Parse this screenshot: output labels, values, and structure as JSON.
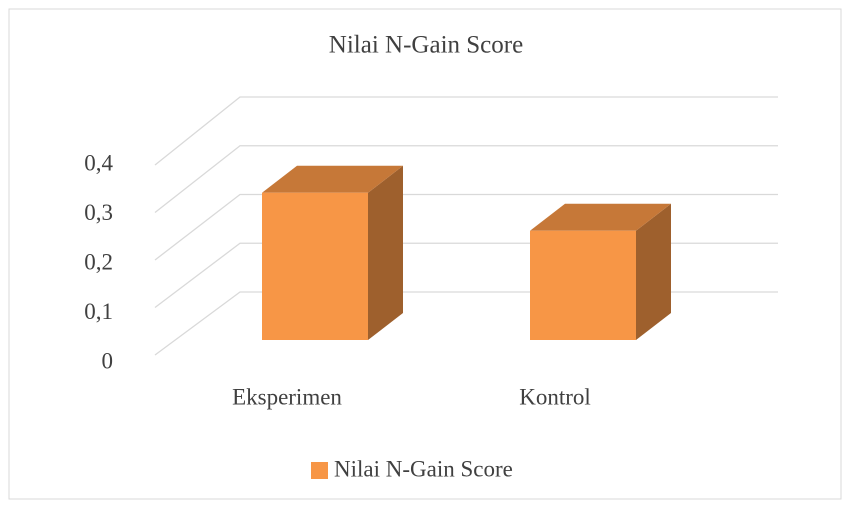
{
  "chart_data": {
    "type": "bar3d",
    "title": "Nilai N-Gain Score",
    "categories": [
      "Eksperimen",
      "Kontrol"
    ],
    "series": [
      {
        "name": "Nilai N-Gain Score",
        "color": "#f79646",
        "values": [
          0.31,
          0.23
        ]
      }
    ],
    "ylim": [
      0,
      0.4
    ],
    "yticks": [
      0,
      {
        "value": 0.1,
        "label": "0,1"
      },
      {
        "value": 0.2,
        "label": "0,2"
      },
      {
        "value": 0.3,
        "label": "0,3"
      },
      {
        "value": 0.4,
        "label": "0,4"
      }
    ],
    "grid": true,
    "legend": "bottom"
  }
}
